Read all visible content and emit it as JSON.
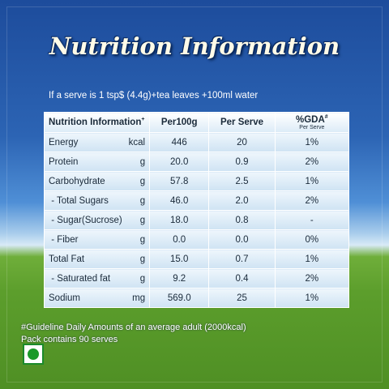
{
  "title": "Nutrition Information",
  "subtitle": "If a serve is 1 tsp$ (4.4g)+tea leaves +100ml water",
  "table": {
    "header": [
      {
        "text": "Nutrition Information",
        "mark": "+"
      },
      {
        "text": "Per100g"
      },
      {
        "text": "Per Serve"
      },
      {
        "text": "%GDA",
        "mark": "#",
        "sub": "Per Serve"
      }
    ],
    "rows": [
      [
        "Energy",
        "kcal",
        "446",
        "20",
        "1%"
      ],
      [
        "Protein",
        "g",
        "20.0",
        "0.9",
        "2%"
      ],
      [
        "Carbohydrate",
        "g",
        "57.8",
        "2.5",
        "1%"
      ],
      [
        " - Total Sugars",
        "g",
        "46.0",
        "2.0",
        "2%"
      ],
      [
        " - Sugar(Sucrose)",
        "g",
        "18.0",
        "0.8",
        "-"
      ],
      [
        " - Fiber",
        "g",
        "0.0",
        "0.0",
        "0%"
      ],
      [
        "Total Fat",
        "g",
        "15.0",
        "0.7",
        "1%"
      ],
      [
        " - Saturated fat",
        "g",
        "9.2",
        "0.4",
        "2%"
      ],
      [
        "Sodium",
        "mg",
        "569.0",
        "25",
        "1%"
      ]
    ]
  },
  "footnotes": [
    "#Guideline Daily Amounts of an average adult (2000kcal)",
    "Pack contains 90 serves"
  ]
}
